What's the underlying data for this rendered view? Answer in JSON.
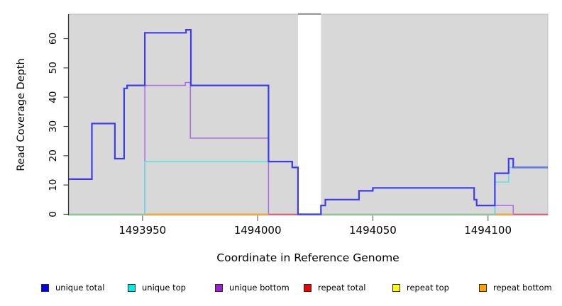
{
  "chart_data": {
    "type": "line",
    "subtype": "step-coverage",
    "title": "",
    "xlabel": "Coordinate in Reference Genome",
    "ylabel": "Read Coverage Depth",
    "xlim": [
      1493918,
      1494126
    ],
    "ylim": [
      0,
      68
    ],
    "x_ticks": [
      1493950,
      1494000,
      1494050,
      1494100
    ],
    "x_tick_labels": [
      "1493950",
      "1494000",
      "1494050",
      "1494100"
    ],
    "y_ticks": [
      0,
      10,
      20,
      30,
      40,
      50,
      60
    ],
    "grid": "off",
    "legend_position": "bottom",
    "plot_bg": "#d8d8d8",
    "plot_border": "#bdbdbd",
    "no_data_gap": {
      "from": 1494017.5,
      "to": 1494027.5,
      "color": "#ffffff",
      "top_cap_color": "#8a8a8a"
    },
    "series": [
      {
        "name": "unique total",
        "legend_color": "#0000ee",
        "line_color": "#3c3cf0",
        "width": 2.2,
        "segments": [
          {
            "steps": [
              [
                1493918,
                12
              ],
              [
                1493928,
                31
              ],
              [
                1493938,
                19
              ],
              [
                1493942,
                43
              ],
              [
                1493943.3,
                44
              ],
              [
                1493951,
                62
              ],
              [
                1493968.9,
                63
              ],
              [
                1493971,
                44
              ],
              [
                1494004.7,
                18
              ],
              [
                1494015,
                16
              ],
              [
                1494017.5,
                0
              ],
              [
                1494027.5,
                3
              ],
              [
                1494029.4,
                5
              ],
              [
                1494044,
                8
              ],
              [
                1494050,
                9
              ],
              [
                1494094,
                5
              ],
              [
                1494095.1,
                3
              ],
              [
                1494103,
                14
              ],
              [
                1494109,
                19
              ],
              [
                1494111,
                16
              ]
            ],
            "end": 1494126
          }
        ]
      },
      {
        "name": "unique top",
        "legend_color": "#00eeee",
        "line_color": "#5ce0e6",
        "width": 1.6,
        "segments": [
          {
            "steps": [
              [
                1493951,
                0
              ],
              [
                1493951,
                18
              ],
              [
                1494015,
                16
              ],
              [
                1494017.5,
                0
              ]
            ],
            "end": 1494017.5
          },
          {
            "steps": [
              [
                1494103,
                0
              ],
              [
                1494103,
                11
              ],
              [
                1494109,
                16
              ]
            ],
            "end": 1494126
          }
        ]
      },
      {
        "name": "unique bottom",
        "legend_color": "#a020d0",
        "line_color": "#b06fe8",
        "width": 1.6,
        "segments": [
          {
            "steps": [
              [
                1493951,
                0
              ],
              [
                1493951,
                44
              ],
              [
                1493968.6,
                45
              ],
              [
                1493970.8,
                26
              ],
              [
                1494004.7,
                0
              ]
            ],
            "end": 1494004.7
          },
          {
            "steps": [
              [
                1494103,
                0
              ],
              [
                1494103,
                3
              ],
              [
                1494111,
                0
              ]
            ],
            "end": 1494111
          }
        ]
      },
      {
        "name": "repeat total",
        "legend_color": "#ee0000",
        "line_color": "#e8405e",
        "width": 1.6,
        "segments": [
          {
            "steps": [
              [
                1494004.7,
                0
              ]
            ],
            "end": 1494017.5
          },
          {
            "steps": [
              [
                1494111,
                0
              ]
            ],
            "end": 1494126
          }
        ]
      },
      {
        "name": "repeat top",
        "legend_color": "#ffff00",
        "line_color": "#ffff00",
        "width": 1.6,
        "segments": []
      },
      {
        "name": "repeat bottom",
        "legend_color": "#ffa500",
        "line_color": "#ffa41e",
        "width": 2,
        "segments": [
          {
            "steps": [
              [
                1493951,
                0
              ]
            ],
            "end": 1494004.7
          },
          {
            "steps": [
              [
                1494103,
                0
              ]
            ],
            "end": 1494111
          }
        ]
      }
    ],
    "baseline_overlap": {
      "name": "top-strand overlap baseline",
      "line_color": "#7dc87d",
      "width": 1.6,
      "segments": [
        {
          "steps": [
            [
              1493918,
              0
            ]
          ],
          "end": 1493951
        },
        {
          "steps": [
            [
              1494027.5,
              0
            ]
          ],
          "end": 1494103
        }
      ]
    },
    "end_overlay": {
      "color": "#5ce0e6",
      "opacity": 0.45,
      "width": 1.4,
      "steps": [
        [
          1494111,
          16
        ]
      ],
      "end": 1494126
    }
  },
  "legend": {
    "items": [
      "unique total",
      "unique top",
      "unique bottom",
      "repeat total",
      "repeat top",
      "repeat bottom"
    ]
  }
}
